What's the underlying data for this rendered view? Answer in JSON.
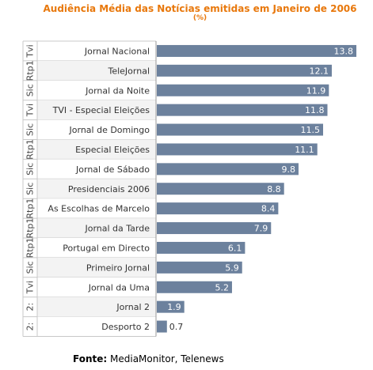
{
  "title": {
    "line1": "Audiência Média das Notícias emitidas em Janeiro de 2006",
    "line2": "(%)"
  },
  "source": {
    "label": "Fonte:",
    "text": "MediaMonitor, Telenews"
  },
  "colors": {
    "bar": "#6c819d",
    "title": "#e8780c",
    "row_alt": "#f3f3f3",
    "grid": "#c8c8c8"
  },
  "chart_data": {
    "type": "bar",
    "orientation": "horizontal",
    "channels": [
      "Tvi",
      "Rtp1",
      "Sic",
      "Tvi",
      "Sic",
      "Rtp1",
      "Sic",
      "Sic",
      "Rtp1",
      "Rtp1",
      "Rtp1",
      "Sic",
      "Tvi",
      "2:",
      "2:"
    ],
    "categories": [
      "Jornal Nacional",
      "TeleJornal",
      "Jornal da Noite",
      "TVI - Especial Eleições",
      "Jornal de Domingo",
      "Especial Eleições",
      "Jornal de Sábado",
      "Presidenciais 2006",
      "As Escolhas de Marcelo",
      "Jornal da Tarde",
      "Portugal em Directo",
      "Primeiro Jornal",
      "Jornal da Uma",
      "Jornal 2",
      "Desporto 2"
    ],
    "values": [
      13.8,
      12.1,
      11.9,
      11.8,
      11.5,
      11.1,
      9.8,
      8.8,
      8.4,
      7.9,
      6.1,
      5.9,
      5.2,
      1.9,
      0.7
    ],
    "xlim": [
      0,
      13.8
    ],
    "grid": false
  }
}
